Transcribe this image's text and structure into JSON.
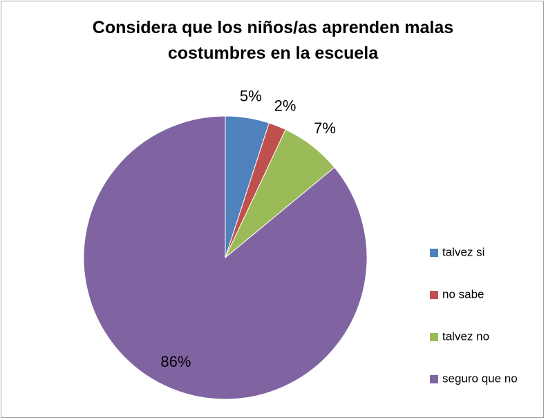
{
  "chart_data": {
    "type": "pie",
    "title": "Considera que los niños/as aprenden malas costumbres en la escuela",
    "categories": [
      "talvez si",
      "no sabe",
      "talvez no",
      "seguro que no"
    ],
    "values": [
      5,
      2,
      7,
      86
    ],
    "value_labels": [
      "5%",
      "2%",
      "7%",
      "86%"
    ],
    "colors": [
      "#4f81bd",
      "#c0504d",
      "#9bbb59",
      "#8064a2"
    ],
    "legend": "right"
  }
}
